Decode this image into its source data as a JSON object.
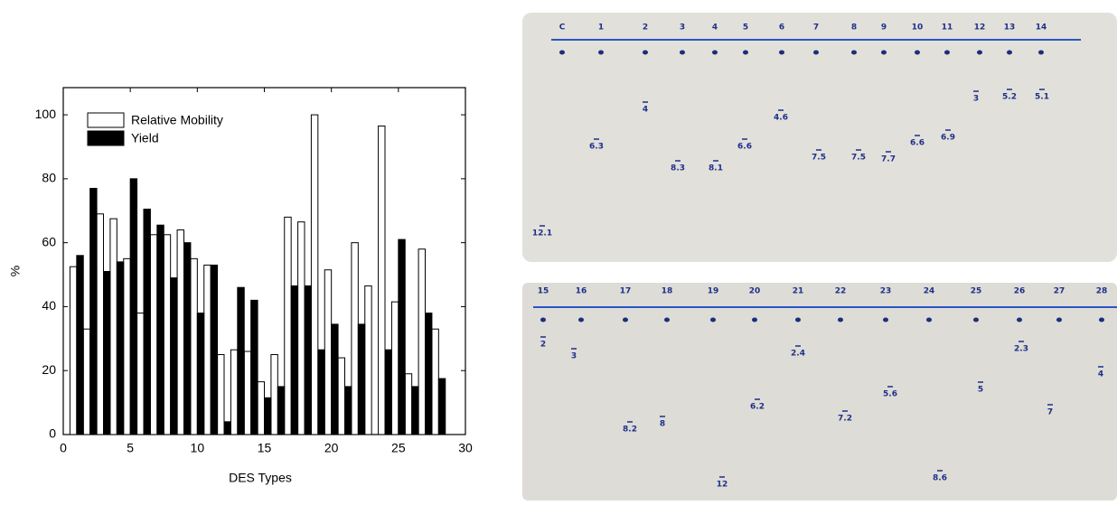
{
  "chart_data": {
    "type": "bar",
    "x_label": "DES Types",
    "y_label": "%",
    "x": [
      1,
      2,
      3,
      4,
      5,
      6,
      7,
      8,
      9,
      10,
      11,
      12,
      13,
      14,
      15,
      16,
      17,
      18,
      19,
      20,
      21,
      22,
      23,
      24,
      25,
      26,
      27,
      28
    ],
    "series": [
      {
        "name": "Relative Mobility",
        "color": "#ffffff",
        "values": [
          52.5,
          33,
          69,
          67.5,
          55,
          38,
          62.5,
          62.5,
          64,
          55,
          53,
          25,
          26.5,
          26,
          16.5,
          25,
          68,
          66.5,
          100,
          51.5,
          24,
          60,
          46.5,
          96.5,
          41.5,
          19,
          58,
          33
        ]
      },
      {
        "name": "Yield",
        "color": "#000000",
        "values": [
          56,
          77,
          51,
          54,
          80,
          70.5,
          65.5,
          49,
          60,
          38,
          53,
          4,
          46,
          42,
          11.5,
          15,
          46.5,
          46.5,
          26.5,
          34.5,
          15,
          34.5,
          null,
          26.5,
          61,
          15,
          38,
          17.5
        ]
      }
    ],
    "xlim": [
      0,
      30
    ],
    "xticks": [
      0,
      5,
      10,
      15,
      20,
      25,
      30
    ],
    "ylim": [
      0,
      108.5
    ],
    "yticks": [
      0,
      20,
      40,
      60,
      80,
      100
    ],
    "legend": "top-left"
  },
  "plates": [
    {
      "lanes": [
        "C",
        "1",
        "2",
        "3",
        "4",
        "5",
        "6",
        "7",
        "8",
        "9",
        "10",
        "11",
        "12",
        "13",
        "14"
      ],
      "annotations": [
        "6.3",
        "4",
        "8.3",
        "8.1",
        "6.6",
        "4.6",
        "7.5",
        "7.5",
        "7.7",
        "6.6",
        "6.9",
        "3",
        "5.2",
        "5.1",
        "12.1"
      ]
    },
    {
      "lanes": [
        "15",
        "16",
        "17",
        "18",
        "19",
        "20",
        "21",
        "22",
        "23",
        "24",
        "25",
        "26",
        "27",
        "28"
      ],
      "annotations": [
        "2",
        "3",
        "8.2",
        "8",
        "12",
        "6.2",
        "2.4",
        "7.2",
        "5.6",
        "8.6",
        "5",
        "2.3",
        "7",
        "4"
      ]
    }
  ]
}
